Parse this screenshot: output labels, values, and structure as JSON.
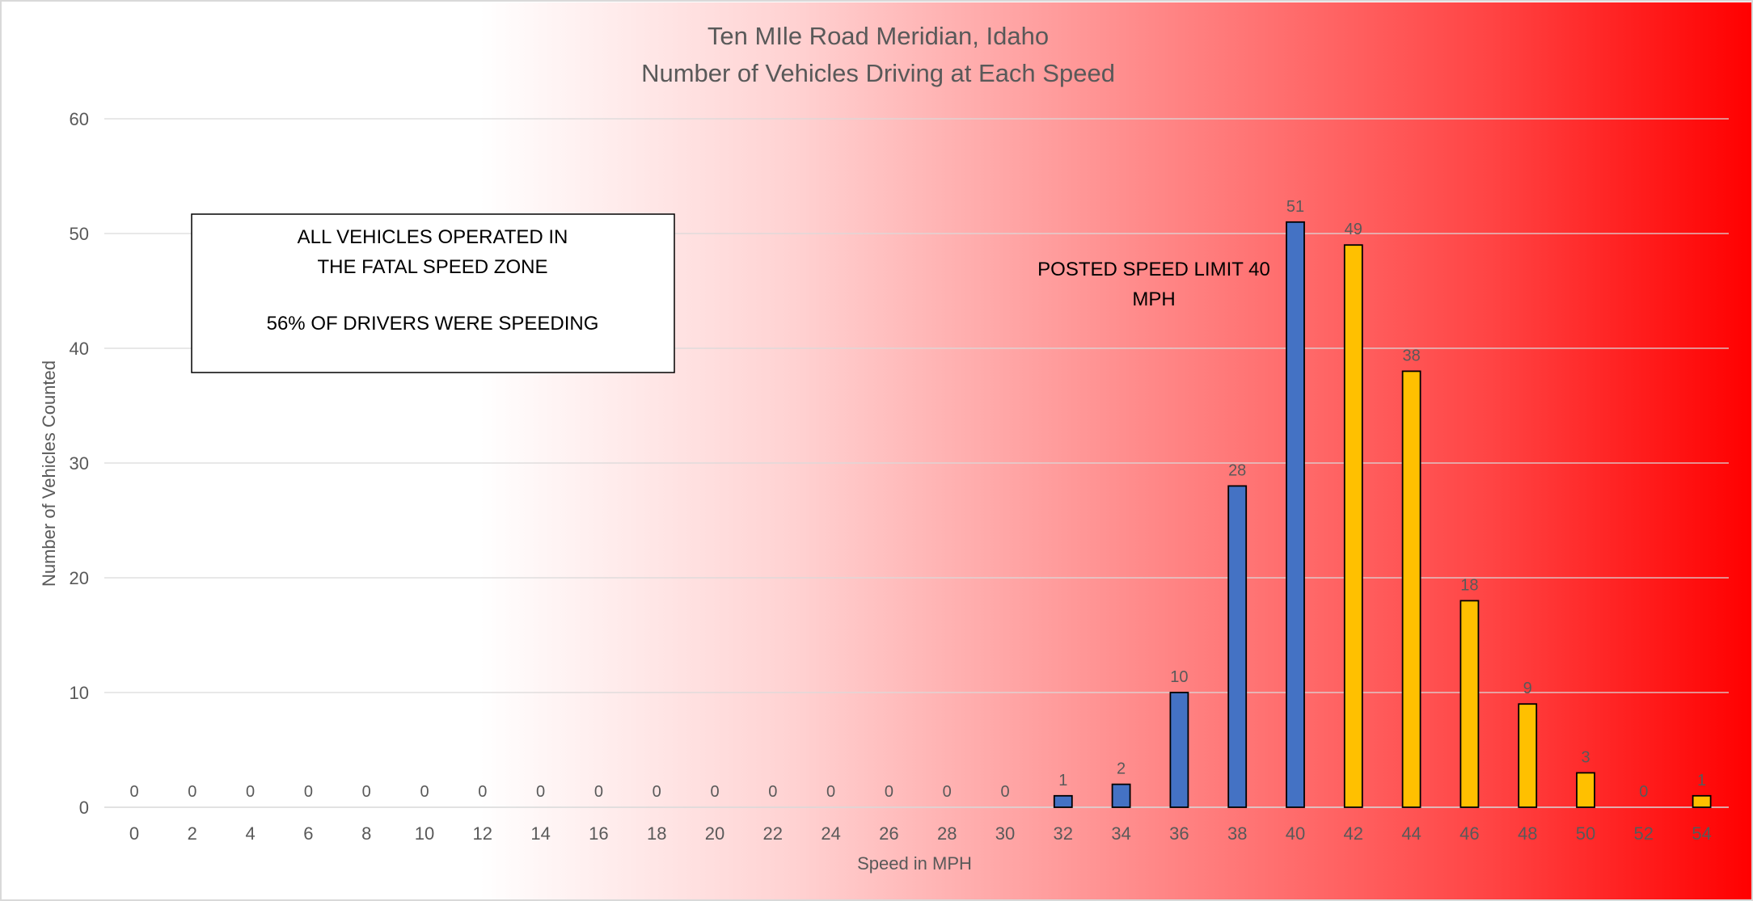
{
  "chart_data": {
    "type": "bar",
    "title": "Ten MIle Road Meridian, Idaho",
    "subtitle": "Number of Vehicles Driving at Each Speed",
    "xlabel": "Speed in MPH",
    "ylabel": "Number of Vehicles Counted",
    "ylim": [
      0,
      60
    ],
    "yticks": [
      0,
      10,
      20,
      30,
      40,
      50,
      60
    ],
    "grid": true,
    "background": "white-to-red horizontal gradient",
    "categories": [
      "0",
      "2",
      "4",
      "6",
      "8",
      "10",
      "12",
      "14",
      "16",
      "18",
      "20",
      "22",
      "24",
      "26",
      "28",
      "30",
      "32",
      "34",
      "36",
      "38",
      "40",
      "42",
      "44",
      "46",
      "48",
      "50",
      "52",
      "54"
    ],
    "values": [
      0,
      0,
      0,
      0,
      0,
      0,
      0,
      0,
      0,
      0,
      0,
      0,
      0,
      0,
      0,
      0,
      1,
      2,
      10,
      28,
      51,
      49,
      38,
      18,
      9,
      3,
      0,
      1
    ],
    "speed_limit": 40,
    "colors": {
      "at_or_below_limit": "#4472C4",
      "above_limit": "#FFC000",
      "bar_outline": "#000000",
      "gradient_start": "#ffffff",
      "gradient_end": "#ff0000",
      "gridline": "#d9d9d9",
      "text": "#595959"
    },
    "annotations": {
      "box_line1": "ALL VEHICLES OPERATED IN",
      "box_line2": "THE FATAL SPEED ZONE",
      "box_line3": "56% OF DRIVERS WERE SPEEDING",
      "speed_limit_line1": "POSTED SPEED LIMIT 40",
      "speed_limit_line2": "MPH"
    }
  }
}
